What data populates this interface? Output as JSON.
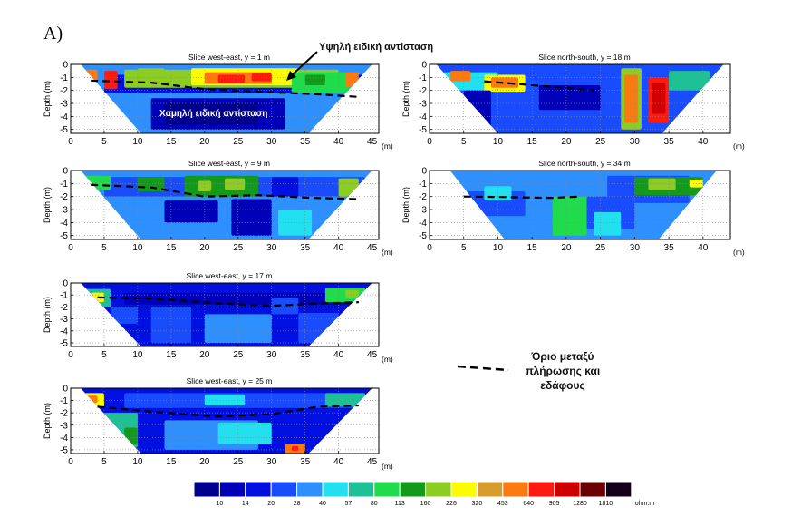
{
  "panel_label": "A)",
  "annotations": {
    "high_resistivity": "Υψηλή ειδική αντίσταση",
    "low_resistivity": "Χαμηλή ειδική αντίσταση"
  },
  "boundary_legend": {
    "line1": "Όριο μεταξύ",
    "line2": "πλήρωσης και",
    "line3": "εδάφους"
  },
  "colorbar": {
    "unit": "ohm.m",
    "values": [
      "10",
      "14",
      "20",
      "28",
      "40",
      "57",
      "80",
      "113",
      "160",
      "226",
      "320",
      "453",
      "640",
      "905",
      "1280",
      "1810"
    ],
    "colors": [
      "#00008f",
      "#0000b8",
      "#0010e0",
      "#1a4cff",
      "#2e90ff",
      "#22e0f0",
      "#20c096",
      "#20dc4c",
      "#139a1b",
      "#8ccc23",
      "#fcfc00",
      "#d89c2a",
      "#fc7a10",
      "#ff1a10",
      "#d00000",
      "#6a0000",
      "#140018"
    ]
  },
  "chart_data": [
    {
      "type": "heatmap",
      "title": "Slice west-east, y = 1 m",
      "xlabel": "(m)",
      "ylabel": "Depth (m)",
      "xlim": [
        0,
        46
      ],
      "ylim": [
        -5.3,
        0
      ],
      "x_ticks": [
        "0",
        "5",
        "10",
        "15",
        "20",
        "25",
        "30",
        "35",
        "40",
        "45"
      ],
      "y_ticks": [
        "0",
        "-1",
        "-2",
        "-3",
        "-4",
        "-5"
      ],
      "grid": true,
      "boundary_line": [
        [
          3,
          -1.25
        ],
        [
          12,
          -1.4
        ],
        [
          20,
          -1.9
        ],
        [
          28,
          -2.1
        ],
        [
          37,
          -2.3
        ],
        [
          43,
          -2.5
        ]
      ]
    },
    {
      "type": "heatmap",
      "title": "Slice north-south, y = 18 m",
      "xlabel": "(m)",
      "ylabel": "Depth (m)",
      "xlim": [
        0,
        44
      ],
      "ylim": [
        -5.3,
        0
      ],
      "x_ticks": [
        "0",
        "5",
        "10",
        "15",
        "20",
        "25",
        "30",
        "35",
        "40"
      ],
      "y_ticks": [
        "0",
        "-1",
        "-2",
        "-3",
        "-4",
        "-5"
      ],
      "grid": true,
      "boundary_line": [
        [
          8,
          -1.3
        ],
        [
          15,
          -1.6
        ],
        [
          20,
          -1.8
        ],
        [
          24,
          -2.0
        ]
      ]
    },
    {
      "type": "heatmap",
      "title": "Slice west-east, y = 9 m",
      "xlabel": "(m)",
      "ylabel": "Depth (m)",
      "xlim": [
        0,
        46
      ],
      "ylim": [
        -5.3,
        0
      ],
      "x_ticks": [
        "0",
        "5",
        "10",
        "15",
        "20",
        "25",
        "30",
        "35",
        "40",
        "45"
      ],
      "y_ticks": [
        "0",
        "-1",
        "-2",
        "-3",
        "-4",
        "-5"
      ],
      "grid": true,
      "boundary_line": [
        [
          3,
          -1.1
        ],
        [
          12,
          -1.3
        ],
        [
          20,
          -2.0
        ],
        [
          28,
          -1.9
        ],
        [
          36,
          -2.1
        ],
        [
          43,
          -2.2
        ]
      ]
    },
    {
      "type": "heatmap",
      "title": "Slice north-south, y = 34 m",
      "xlabel": "(m)",
      "ylabel": "Depth (m)",
      "xlim": [
        0,
        44
      ],
      "ylim": [
        -5.3,
        0
      ],
      "x_ticks": [
        "0",
        "5",
        "10",
        "15",
        "20",
        "25",
        "30",
        "35",
        "40"
      ],
      "y_ticks": [
        "0",
        "-1",
        "-2",
        "-3",
        "-4",
        "-5"
      ],
      "grid": true,
      "boundary_line": [
        [
          5,
          -2.0
        ],
        [
          12,
          -2.05
        ],
        [
          18,
          -2.1
        ],
        [
          22,
          -2.0
        ]
      ]
    },
    {
      "type": "heatmap",
      "title": "Slice west-east, y = 17 m",
      "xlabel": "(m)",
      "ylabel": "Depth (m)",
      "xlim": [
        0,
        46
      ],
      "ylim": [
        -5.3,
        0
      ],
      "x_ticks": [
        "0",
        "5",
        "10",
        "15",
        "20",
        "25",
        "30",
        "35",
        "40",
        "45"
      ],
      "y_ticks": [
        "0",
        "-1",
        "-2",
        "-3",
        "-4",
        "-5"
      ],
      "grid": true,
      "boundary_line": [
        [
          4,
          -1.2
        ],
        [
          12,
          -1.3
        ],
        [
          22,
          -1.7
        ],
        [
          30,
          -1.9
        ],
        [
          38,
          -1.7
        ],
        [
          43,
          -1.6
        ]
      ]
    },
    {
      "type": "heatmap",
      "title": "Slice west-east, y = 25 m",
      "xlabel": "(m)",
      "ylabel": "Depth (m)",
      "xlim": [
        0,
        46
      ],
      "ylim": [
        -5.3,
        0
      ],
      "x_ticks": [
        "0",
        "5",
        "10",
        "15",
        "20",
        "25",
        "30",
        "35",
        "40",
        "45"
      ],
      "y_ticks": [
        "0",
        "-1",
        "-2",
        "-3",
        "-4",
        "-5"
      ],
      "grid": true,
      "boundary_line": [
        [
          4,
          -1.5
        ],
        [
          12,
          -1.9
        ],
        [
          22,
          -2.3
        ],
        [
          30,
          -2.1
        ],
        [
          37,
          -1.5
        ],
        [
          43,
          -1.4
        ]
      ]
    }
  ]
}
